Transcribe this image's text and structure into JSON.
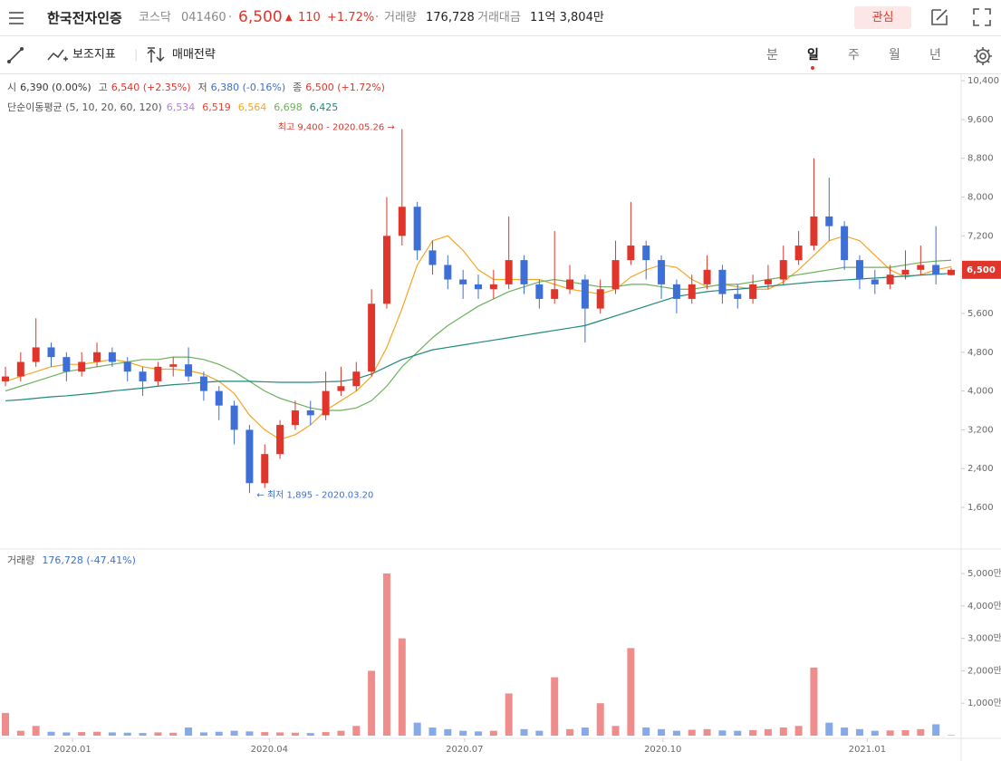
{
  "header": {
    "name": "한국전자인증",
    "market": "코스닥",
    "code": "041460",
    "price": "6,500",
    "arrow": "▲",
    "change": "110",
    "change_pct": "+1.72%",
    "volume_label": "거래량",
    "volume": "176,728",
    "amount_label": "거래대금",
    "amount": "11억 3,804만",
    "watch_button": "관심"
  },
  "toolbar": {
    "indicators": "보조지표",
    "strategy": "매매전략",
    "periods": [
      "분",
      "일",
      "주",
      "월",
      "년"
    ],
    "selected_period": 1
  },
  "chart_data": [
    {
      "type": "candlestick",
      "ohlc_legend": [
        {
          "label": "시",
          "text": "6,390 (0.00%)",
          "color": "#333333"
        },
        {
          "label": "고",
          "text": "6,540 (+2.35%)",
          "color": "#e0352b"
        },
        {
          "label": "저",
          "text": "6,380 (-0.16%)",
          "color": "#3d6fd6"
        },
        {
          "label": "종",
          "text": "6,500 (+1.72%)",
          "color": "#e0352b"
        }
      ],
      "ma_legend": {
        "label": "단순이동평균 (5, 10, 20, 60, 120)",
        "items": [
          {
            "label": "6,534",
            "color": "#b77ee0"
          },
          {
            "label": "6,519",
            "color": "#e8422e"
          },
          {
            "label": "6,564",
            "color": "#f5a623"
          },
          {
            "label": "6,698",
            "color": "#6cb15b"
          },
          {
            "label": "6,425",
            "color": "#1f8a7a"
          }
        ]
      },
      "up_color": "#e0352b",
      "down_color": "#3d6fd6",
      "categories": [
        null,
        null,
        null,
        null,
        null,
        null,
        null,
        null,
        null,
        null,
        null,
        null,
        null,
        null,
        null,
        null,
        null,
        null,
        null,
        null,
        null,
        null,
        null,
        null,
        null,
        null,
        null,
        null,
        null,
        null,
        null,
        null,
        null,
        null,
        null,
        null,
        null,
        null,
        null,
        null,
        null,
        null,
        null,
        null,
        null,
        null,
        null,
        null,
        null,
        null,
        null,
        null,
        null,
        null,
        null,
        null,
        null,
        null,
        null,
        null,
        null,
        null,
        null
      ],
      "open": [
        4200,
        4300,
        4600,
        4900,
        4700,
        4400,
        4600,
        4800,
        4600,
        4400,
        4200,
        4500,
        4550,
        4300,
        4000,
        3700,
        3200,
        2100,
        2700,
        3300,
        3600,
        3500,
        4000,
        4100,
        4400,
        5800,
        7200,
        7800,
        6900,
        6600,
        6300,
        6200,
        6100,
        6200,
        6700,
        6200,
        5900,
        6100,
        6300,
        5700,
        6100,
        6700,
        7000,
        6700,
        6200,
        5900,
        6200,
        6500,
        6000,
        5900,
        6200,
        6300,
        6700,
        7000,
        7600,
        7400,
        6700,
        6300,
        6200,
        6400,
        6500,
        6600,
        6390
      ],
      "high": [
        4500,
        4800,
        5500,
        5000,
        4800,
        4800,
        5000,
        4900,
        4700,
        4500,
        4600,
        4700,
        4900,
        4400,
        4100,
        3800,
        3300,
        2900,
        3400,
        3800,
        3800,
        4400,
        4500,
        4600,
        6100,
        8000,
        9400,
        7900,
        7100,
        6800,
        6500,
        6400,
        6500,
        7600,
        6800,
        6300,
        7300,
        6600,
        6400,
        6300,
        7100,
        7900,
        7100,
        6800,
        6300,
        6400,
        6800,
        6600,
        6200,
        6400,
        6600,
        7000,
        7300,
        8800,
        8400,
        7500,
        6800,
        6500,
        6600,
        6900,
        7000,
        7400,
        6540
      ],
      "low": [
        4100,
        4200,
        4500,
        4500,
        4200,
        4300,
        4500,
        4500,
        4200,
        3900,
        4100,
        4300,
        4200,
        3800,
        3400,
        2900,
        1895,
        2000,
        2600,
        3200,
        3300,
        3400,
        3900,
        4000,
        4300,
        5700,
        7000,
        6700,
        6400,
        6100,
        5900,
        5900,
        5900,
        6100,
        6000,
        5700,
        5800,
        6000,
        5000,
        5600,
        6000,
        6600,
        6300,
        5900,
        5600,
        5800,
        6100,
        5800,
        5700,
        5800,
        6100,
        6200,
        6600,
        6900,
        7100,
        6500,
        6100,
        6000,
        6100,
        6300,
        6400,
        6200,
        6380
      ],
      "close": [
        4300,
        4600,
        4900,
        4700,
        4400,
        4600,
        4800,
        4600,
        4400,
        4200,
        4500,
        4550,
        4300,
        4000,
        3700,
        3200,
        2100,
        2700,
        3300,
        3600,
        3500,
        4000,
        4100,
        4400,
        5800,
        7200,
        7800,
        6900,
        6600,
        6300,
        6200,
        6100,
        6200,
        6700,
        6200,
        5900,
        6100,
        6300,
        5700,
        6100,
        6700,
        7000,
        6700,
        6200,
        5900,
        6200,
        6500,
        6000,
        5900,
        6200,
        6300,
        6700,
        7000,
        7600,
        7400,
        6700,
        6300,
        6200,
        6400,
        6500,
        6600,
        6400,
        6500
      ],
      "series": [
        {
          "color": "#f5a623",
          "values": [
            4200,
            4300,
            4400,
            4500,
            4550,
            4550,
            4600,
            4650,
            4600,
            4500,
            4450,
            4450,
            4420,
            4350,
            4200,
            3950,
            3500,
            3200,
            3000,
            3100,
            3300,
            3600,
            3800,
            4000,
            4300,
            4900,
            5700,
            6600,
            7100,
            7200,
            6900,
            6500,
            6300,
            6300,
            6300,
            6300,
            6200,
            6100,
            6050,
            6000,
            6100,
            6350,
            6500,
            6600,
            6550,
            6300,
            6150,
            6200,
            6150,
            6100,
            6100,
            6250,
            6500,
            6800,
            7100,
            7200,
            7100,
            6800,
            6500,
            6350,
            6400,
            6500,
            6564
          ]
        },
        {
          "color": "#6cb15b",
          "values": [
            4000,
            4100,
            4200,
            4300,
            4400,
            4450,
            4500,
            4550,
            4600,
            4650,
            4650,
            4700,
            4700,
            4650,
            4550,
            4400,
            4200,
            4000,
            3850,
            3750,
            3650,
            3600,
            3600,
            3650,
            3800,
            4100,
            4500,
            4800,
            5100,
            5350,
            5550,
            5750,
            5900,
            6050,
            6150,
            6250,
            6300,
            6250,
            6200,
            6150,
            6150,
            6200,
            6200,
            6150,
            6100,
            6100,
            6150,
            6200,
            6200,
            6250,
            6300,
            6350,
            6400,
            6450,
            6500,
            6550,
            6550,
            6550,
            6550,
            6600,
            6650,
            6680,
            6698
          ]
        },
        {
          "color": "#1f8a7a",
          "values": [
            3800,
            3820,
            3850,
            3880,
            3900,
            3930,
            3960,
            4000,
            4030,
            4060,
            4100,
            4130,
            4150,
            4180,
            4200,
            4200,
            4200,
            4190,
            4180,
            4180,
            4180,
            4190,
            4200,
            4250,
            4350,
            4500,
            4650,
            4750,
            4850,
            4900,
            4950,
            5000,
            5050,
            5100,
            5150,
            5200,
            5250,
            5300,
            5350,
            5450,
            5550,
            5650,
            5750,
            5850,
            5950,
            6000,
            6050,
            6080,
            6100,
            6130,
            6160,
            6190,
            6220,
            6250,
            6270,
            6290,
            6310,
            6330,
            6350,
            6370,
            6390,
            6410,
            6425
          ]
        }
      ],
      "annotations": [
        {
          "text": "최고 9,400 - 2020.05.26 →",
          "value": 9400,
          "color": "#e0352b"
        },
        {
          "text": "← 최저 1,895 - 2020.03.20",
          "value": 1895,
          "color": "#3d6fd6"
        }
      ],
      "last_price": {
        "value": 6500,
        "label": "6,500"
      },
      "ylim": [
        760,
        10570
      ],
      "yticks": [
        {
          "value": 10400,
          "label": "10,400"
        },
        {
          "value": 9600,
          "label": "9,600"
        },
        {
          "value": 8800,
          "label": "8,800"
        },
        {
          "value": 8000,
          "label": "8,000"
        },
        {
          "value": 7200,
          "label": "7,200"
        },
        {
          "value": 5600,
          "label": "5,600"
        },
        {
          "value": 4800,
          "label": "4,800"
        },
        {
          "value": 4000,
          "label": "4,000"
        },
        {
          "value": 3200,
          "label": "3,200"
        },
        {
          "value": 2400,
          "label": "2,400"
        },
        {
          "value": 1600,
          "label": "1,600"
        }
      ],
      "xticks": [
        {
          "value": 4.4,
          "label": "2020.01"
        },
        {
          "value": 17.3,
          "label": "2020.04"
        },
        {
          "value": 30.1,
          "label": "2020.07"
        },
        {
          "value": 43.1,
          "label": "2020.10"
        },
        {
          "value": 56.5,
          "label": "2021.01"
        }
      ]
    },
    {
      "type": "bar",
      "legend": {
        "label": "거래량",
        "text": "176,728 (-47.41%)"
      },
      "up_color": "#ef8d8d",
      "down_color": "#86a9ea",
      "values": [
        700,
        150,
        300,
        120,
        100,
        110,
        120,
        100,
        90,
        80,
        100,
        90,
        250,
        100,
        120,
        150,
        130,
        110,
        100,
        90,
        80,
        110,
        150,
        300,
        2000,
        5000,
        3000,
        400,
        250,
        200,
        150,
        130,
        150,
        1300,
        200,
        150,
        1800,
        200,
        250,
        1000,
        300,
        2700,
        250,
        200,
        150,
        180,
        200,
        160,
        150,
        170,
        200,
        250,
        300,
        2100,
        400,
        250,
        200,
        150,
        160,
        170,
        200,
        350,
        17.6728
      ],
      "ylim": [
        0,
        5700
      ],
      "yticks": [
        {
          "value": 5000,
          "label": "5,000만"
        },
        {
          "value": 4000,
          "label": "4,000만"
        },
        {
          "value": 3000,
          "label": "3,000만"
        },
        {
          "value": 2000,
          "label": "2,000만"
        },
        {
          "value": 1000,
          "label": "1,000만"
        }
      ]
    }
  ]
}
